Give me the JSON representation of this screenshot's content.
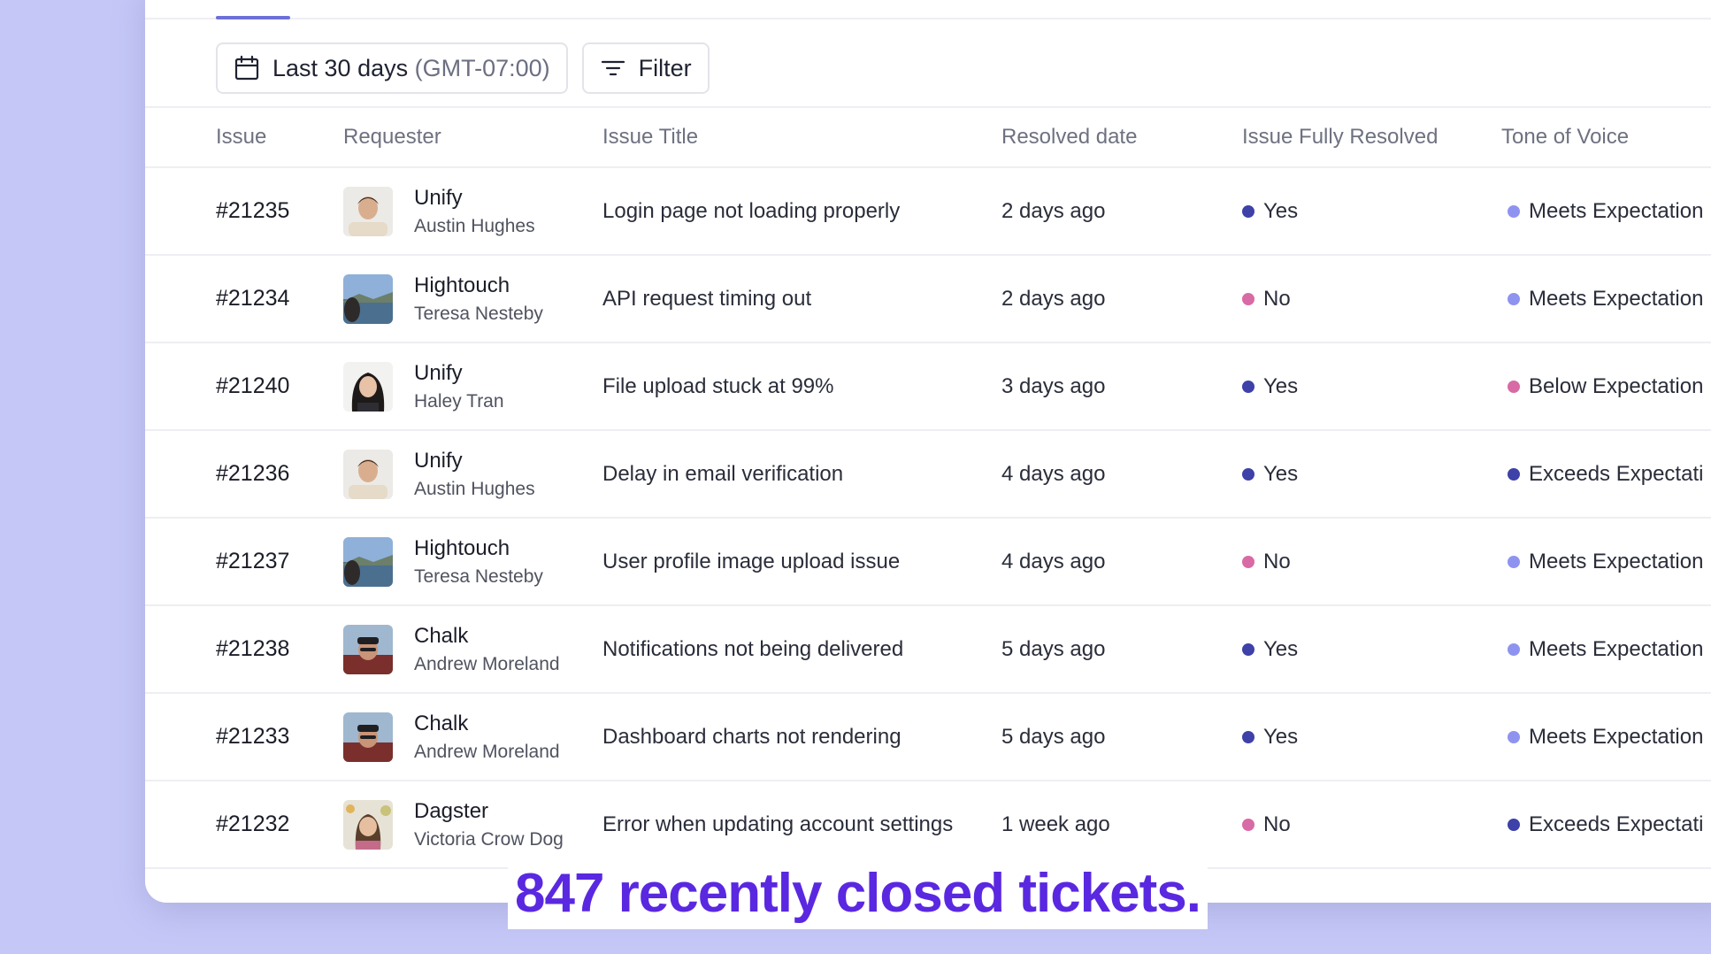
{
  "toolbar": {
    "date_label": "Last 30 days",
    "date_tz": "(GMT-07:00)",
    "filter_label": "Filter"
  },
  "columns": {
    "issue": "Issue",
    "requester": "Requester",
    "title": "Issue Title",
    "resolved_date": "Resolved date",
    "fully_resolved": "Issue Fully Resolved",
    "tone": "Tone of Voice"
  },
  "colors": {
    "yes": "#3d41a8",
    "no": "#d86aa6",
    "meets": "#8f93f0",
    "below": "#d86aa6",
    "exceeds": "#3d41a8",
    "caption": "#5a28e0",
    "background": "#c5c8f7"
  },
  "rows": [
    {
      "id": "#21235",
      "org": "Unify",
      "person": "Austin Hughes",
      "avatar": "avatar-austin",
      "title": "Login page not loading properly",
      "date": "2 days ago",
      "resolved": "Yes",
      "resolved_color": "yes",
      "tone": "Meets Expectation",
      "tone_color": "meets"
    },
    {
      "id": "#21234",
      "org": "Hightouch",
      "person": "Teresa Nesteby",
      "avatar": "avatar-teresa",
      "title": "API request timing out",
      "date": "2 days ago",
      "resolved": "No",
      "resolved_color": "no",
      "tone": "Meets Expectation",
      "tone_color": "meets"
    },
    {
      "id": "#21240",
      "org": "Unify",
      "person": "Haley Tran",
      "avatar": "avatar-haley",
      "title": "File upload stuck at 99%",
      "date": "3 days ago",
      "resolved": "Yes",
      "resolved_color": "yes",
      "tone": "Below Expectation",
      "tone_color": "below"
    },
    {
      "id": "#21236",
      "org": "Unify",
      "person": "Austin Hughes",
      "avatar": "avatar-austin",
      "title": "Delay in email verification",
      "date": "4 days ago",
      "resolved": "Yes",
      "resolved_color": "yes",
      "tone": "Exceeds Expectati",
      "tone_color": "exceeds"
    },
    {
      "id": "#21237",
      "org": "Hightouch",
      "person": "Teresa Nesteby",
      "avatar": "avatar-teresa",
      "title": "User profile image upload issue",
      "date": "4 days ago",
      "resolved": "No",
      "resolved_color": "no",
      "tone": "Meets Expectation",
      "tone_color": "meets"
    },
    {
      "id": "#21238",
      "org": "Chalk",
      "person": "Andrew Moreland",
      "avatar": "avatar-andrew",
      "title": "Notifications not being delivered",
      "date": "5 days ago",
      "resolved": "Yes",
      "resolved_color": "yes",
      "tone": "Meets Expectation",
      "tone_color": "meets"
    },
    {
      "id": "#21233",
      "org": "Chalk",
      "person": "Andrew Moreland",
      "avatar": "avatar-andrew",
      "title": "Dashboard charts not rendering",
      "date": "5 days ago",
      "resolved": "Yes",
      "resolved_color": "yes",
      "tone": "Meets Expectation",
      "tone_color": "meets"
    },
    {
      "id": "#21232",
      "org": "Dagster",
      "person": "Victoria Crow Dog",
      "avatar": "avatar-victoria",
      "title": "Error when updating account settings",
      "date": "1 week ago",
      "resolved": "No",
      "resolved_color": "no",
      "tone": "Exceeds Expectati",
      "tone_color": "exceeds"
    }
  ],
  "caption": "847 recently closed tickets."
}
